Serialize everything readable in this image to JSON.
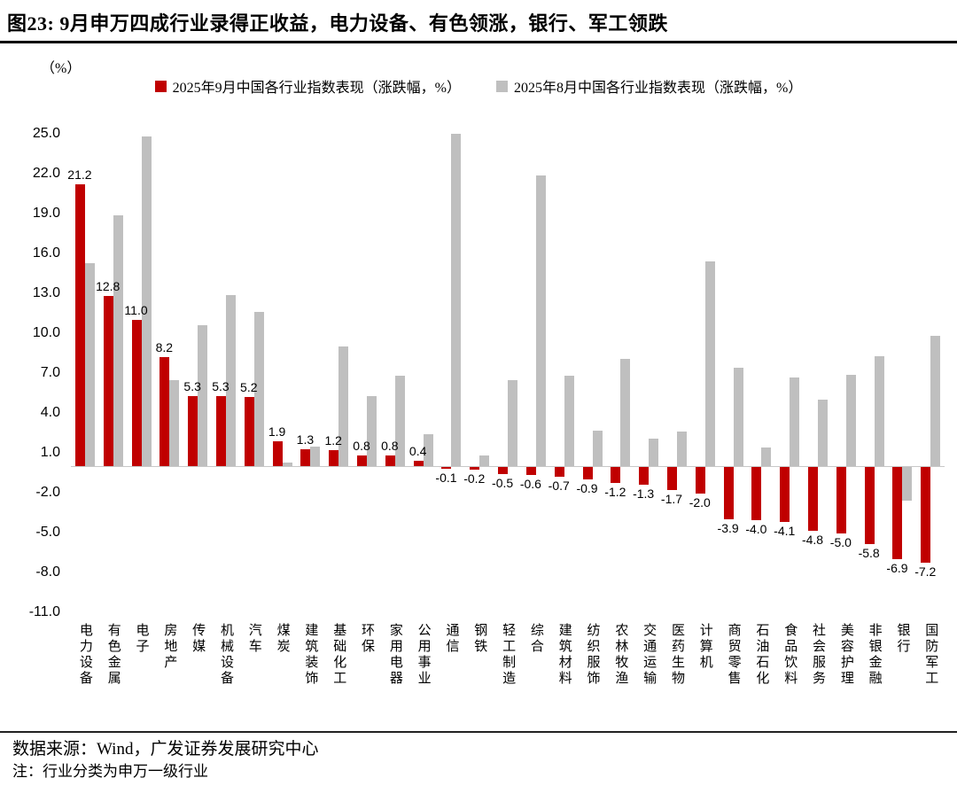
{
  "title": "图23:  9月申万四成行业录得正收益，电力设备、有色领涨，银行、军工领跌",
  "unit_label": "（%）",
  "footer": {
    "source": "数据来源：Wind，广发证券发展研究中心",
    "note": "注：行业分类为申万一级行业"
  },
  "chart_data": {
    "type": "bar",
    "title": "9月申万四成行业录得正收益，电力设备、有色领涨，银行、军工领跌",
    "categories": [
      "电力设备",
      "有色金属",
      "电子",
      "房地产",
      "传媒",
      "机械设备",
      "汽车",
      "煤炭",
      "建筑装饰",
      "基础化工",
      "环保",
      "家用电器",
      "公用事业",
      "通信",
      "钢铁",
      "轻工制造",
      "综合",
      "建筑材料",
      "纺织服饰",
      "农林牧渔",
      "交通运输",
      "医药生物",
      "计算机",
      "商贸零售",
      "石油石化",
      "食品饮料",
      "社会服务",
      "美容护理",
      "非银金融",
      "银行",
      "国防军工"
    ],
    "series": [
      {
        "name": "2025年9月中国各行业指数表现（涨跌幅，%）",
        "color": "#c00000",
        "values": [
          21.2,
          12.8,
          11.0,
          8.2,
          5.3,
          5.3,
          5.2,
          1.9,
          1.3,
          1.2,
          0.8,
          0.8,
          0.4,
          -0.1,
          -0.2,
          -0.5,
          -0.6,
          -0.7,
          -0.9,
          -1.2,
          -1.3,
          -1.7,
          -2.0,
          -3.9,
          -4.0,
          -4.1,
          -4.8,
          -5.0,
          -5.8,
          -6.9,
          -7.2
        ]
      },
      {
        "name": "2025年8月中国各行业指数表现（涨跌幅，%）",
        "color": "#bfbfbf",
        "values": [
          15.3,
          18.9,
          24.8,
          6.5,
          10.6,
          12.9,
          11.6,
          0.3,
          1.5,
          9.0,
          5.3,
          6.8,
          2.4,
          25.0,
          0.8,
          6.5,
          21.9,
          6.8,
          2.7,
          8.1,
          2.1,
          2.6,
          15.4,
          7.4,
          1.4,
          6.7,
          5.0,
          6.9,
          8.3,
          -2.5,
          9.8
        ]
      }
    ],
    "ylabel": "（%）",
    "ylim": [
      -11,
      25
    ],
    "ytick_step": 3,
    "yticks": [
      25.0,
      22.0,
      19.0,
      16.0,
      13.0,
      10.0,
      7.0,
      4.0,
      1.0,
      -2.0,
      -5.0,
      -8.0,
      -11.0
    ],
    "grid": false,
    "legend_position": "top",
    "data_labels_series": "2025年9月中国各行业指数表现（涨跌幅，%）"
  }
}
